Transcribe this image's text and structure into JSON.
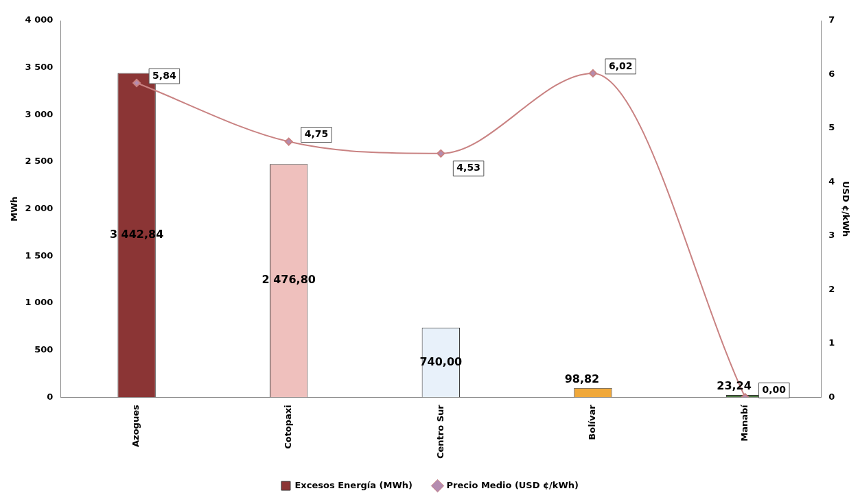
{
  "chart_data": {
    "type": "bar",
    "ylabel": "MWh",
    "y2label": "USD ¢/kWh",
    "categories": [
      "Azogues",
      "Cotopaxi",
      "Centro Sur",
      "Bolívar",
      "Manabí"
    ],
    "series": [
      {
        "name": "Excesos Energía (MWh)",
        "colors": [
          "#8b3535",
          "#efc0bd",
          "#e8f1fa",
          "#f0a83a",
          "#4f7d45"
        ],
        "values": [
          3442.84,
          2476.8,
          740,
          98.82,
          23.24
        ],
        "value_labels": [
          "3 442,84",
          "2 476,80",
          "740,00",
          "98,82",
          "23,24"
        ]
      },
      {
        "name": "Precio Medio (USD ¢/kWh)",
        "type": "line",
        "axis": "y2",
        "color": "#c98282",
        "values": [
          5.84,
          4.75,
          4.53,
          6.02,
          0
        ],
        "value_labels": [
          "5,84",
          "4,75",
          "4,53",
          "6,02",
          "0,00"
        ]
      }
    ],
    "ylim": [
      0,
      4000
    ],
    "yticks": [
      0,
      500,
      {
        "value": 1000,
        "label": "1 000"
      },
      {
        "value": 1500,
        "label": "1 500"
      },
      {
        "value": 2000,
        "label": "2 000"
      },
      {
        "value": 2500,
        "label": "2 500"
      },
      {
        "value": 3000,
        "label": "3 000"
      },
      {
        "value": 3500,
        "label": "3 500"
      },
      {
        "value": 4000,
        "label": "4 000"
      }
    ],
    "y2lim": [
      0,
      7
    ],
    "y2ticks": [
      0,
      1,
      2,
      3,
      4,
      5,
      6,
      7
    ],
    "marker": "diamond",
    "grid": false,
    "legend": "bottom"
  }
}
